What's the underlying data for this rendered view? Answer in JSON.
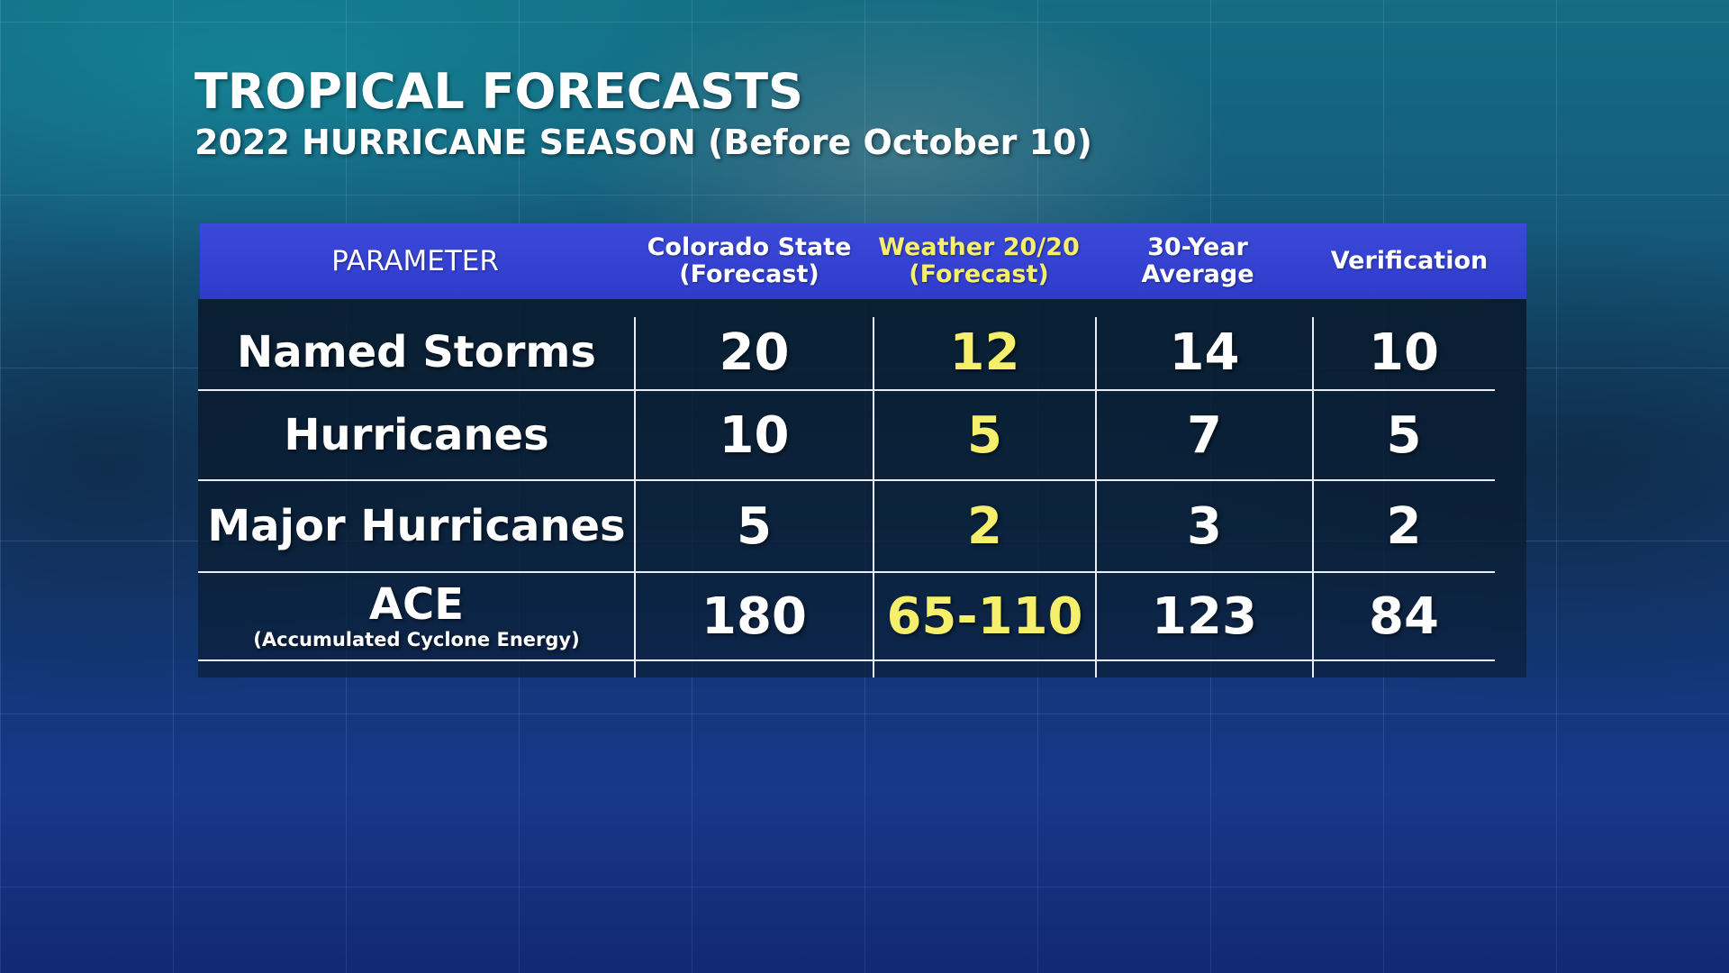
{
  "header": {
    "title": "TROPICAL FORECASTS",
    "subtitle": "2022 HURRICANE SEASON (Before October 10)"
  },
  "table": {
    "columns": [
      {
        "line1": "PARAMETER",
        "line2": ""
      },
      {
        "line1": "Colorado State",
        "line2": "(Forecast)"
      },
      {
        "line1": "Weather 20/20",
        "line2": "(Forecast)"
      },
      {
        "line1": "30-Year",
        "line2": "Average"
      },
      {
        "line1": "Verification",
        "line2": ""
      }
    ],
    "rows": [
      {
        "label": "Named Storms",
        "sublabel": "",
        "values": [
          "20",
          "12",
          "14",
          "10"
        ]
      },
      {
        "label": "Hurricanes",
        "sublabel": "",
        "values": [
          "10",
          "5",
          "7",
          "5"
        ]
      },
      {
        "label": "Major Hurricanes",
        "sublabel": "",
        "values": [
          "5",
          "2",
          "3",
          "2"
        ]
      },
      {
        "label": "ACE",
        "sublabel": "(Accumulated Cyclone Energy)",
        "values": [
          "180",
          "65-110",
          "123",
          "84"
        ]
      }
    ]
  },
  "colors": {
    "header_bar": "#3242d2",
    "highlight_text": "#f6ef6c",
    "text": "#ffffff",
    "grid_lines": "#e8eef7"
  }
}
